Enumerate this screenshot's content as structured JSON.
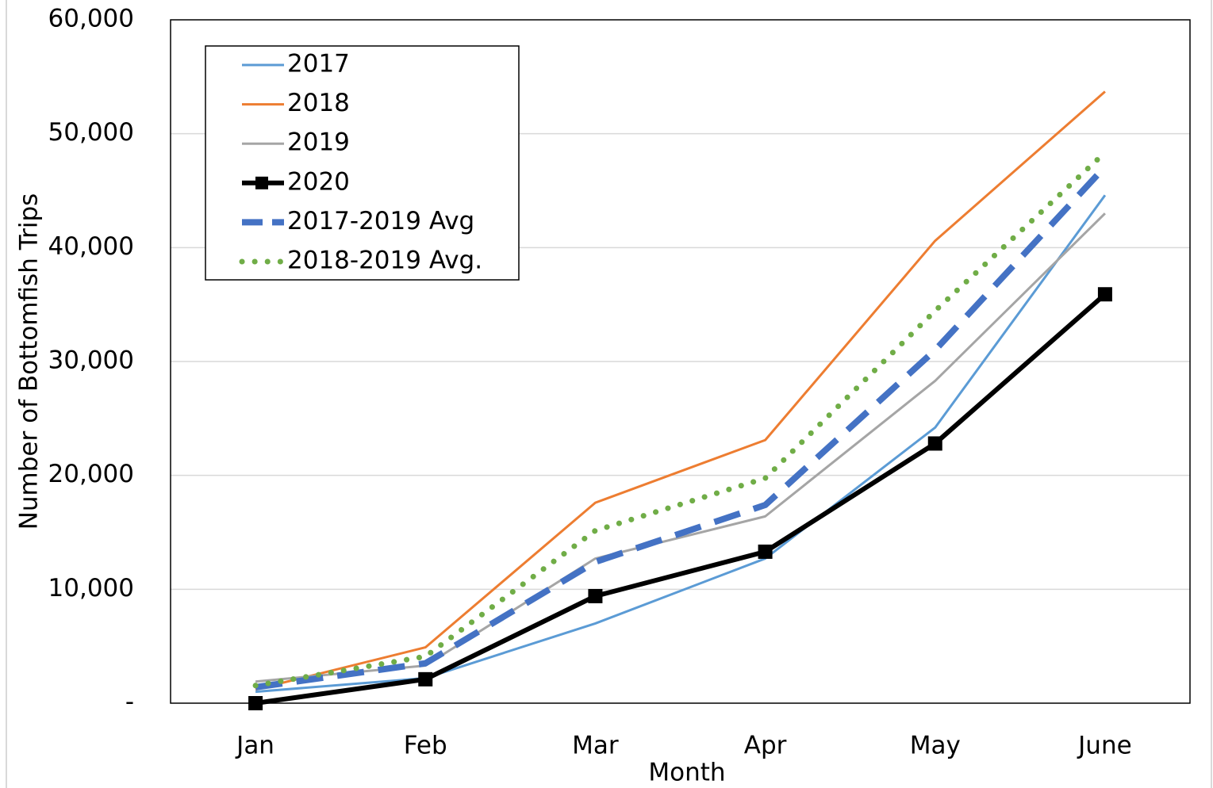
{
  "chart_data": {
    "type": "line",
    "x_label": "Month",
    "y_label": "Number of Bottomfish Trips",
    "categories": [
      "Jan",
      "Feb",
      "Mar",
      "Apr",
      "May",
      "June"
    ],
    "series": [
      {
        "name": "2017",
        "color": "#5b9bd5",
        "style": "solid",
        "values": [
          1000,
          2200,
          7000,
          12700,
          24200,
          44600
        ]
      },
      {
        "name": "2018",
        "color": "#ed7d31",
        "style": "solid",
        "values": [
          1200,
          4900,
          17600,
          23100,
          40600,
          53700
        ]
      },
      {
        "name": "2019",
        "color": "#a5a5a5",
        "style": "solid",
        "values": [
          1900,
          3300,
          12700,
          16400,
          28300,
          43000
        ]
      },
      {
        "name": "2020",
        "color": "#000000",
        "style": "solid",
        "marker": "square",
        "values": [
          0,
          2100,
          9400,
          13300,
          22800,
          35900
        ]
      },
      {
        "name": "2017-2019 Avg",
        "color": "#4472c4",
        "style": "dashed",
        "values": [
          1400,
          3500,
          12400,
          17400,
          31000,
          47100
        ]
      },
      {
        "name": "2018-2019 Avg.",
        "color": "#70ad47",
        "style": "dotted",
        "values": [
          1550,
          4100,
          15150,
          19750,
          34450,
          48350
        ]
      }
    ],
    "ylim": [
      0,
      60000
    ],
    "yticks": [
      {
        "value": 0,
        "label": "-"
      },
      {
        "value": 10000,
        "label": "10,000"
      },
      {
        "value": 20000,
        "label": "20,000"
      },
      {
        "value": 30000,
        "label": "30,000"
      },
      {
        "value": 40000,
        "label": "40,000"
      },
      {
        "value": 50000,
        "label": "50,000"
      },
      {
        "value": 60000,
        "label": "60,000"
      }
    ],
    "grid": true,
    "legend": "upper left"
  }
}
